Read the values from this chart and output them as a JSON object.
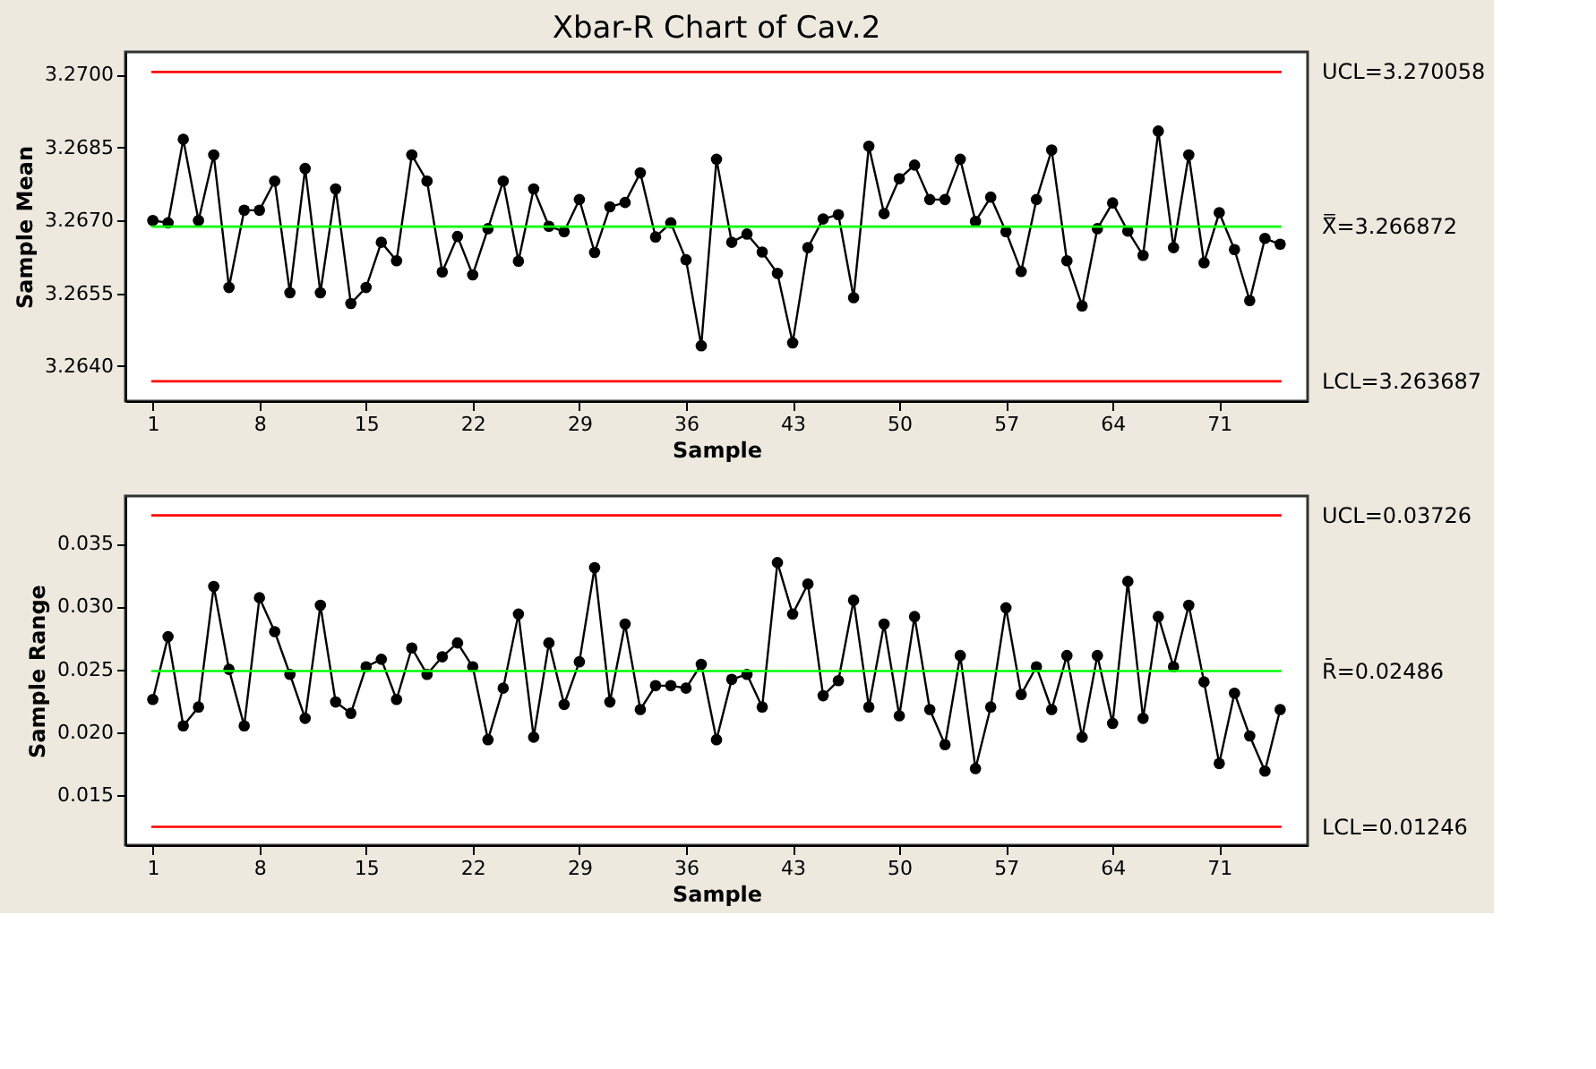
{
  "chart_data": [
    {
      "type": "line",
      "title": "Xbar-R Chart of Cav.2",
      "xlabel": "Sample",
      "ylabel": "Sample Mean",
      "x": [
        1,
        2,
        3,
        4,
        5,
        6,
        7,
        8,
        9,
        10,
        11,
        12,
        13,
        14,
        15,
        16,
        17,
        18,
        19,
        20,
        21,
        22,
        23,
        24,
        25,
        26,
        27,
        28,
        29,
        30,
        31,
        32,
        33,
        34,
        35,
        36,
        37,
        38,
        39,
        40,
        41,
        42,
        43,
        44,
        45,
        46,
        47,
        48,
        49,
        50,
        51,
        52,
        53,
        54,
        55,
        56,
        57,
        58,
        59,
        60,
        61,
        62,
        63,
        64,
        65,
        66,
        67,
        68,
        69,
        70,
        71,
        72,
        73,
        74,
        75
      ],
      "series": [
        {
          "color": "#000000",
          "values": [
            3.267,
            3.26695,
            3.26867,
            3.267,
            3.26835,
            3.26562,
            3.26721,
            3.26721,
            3.26781,
            3.26551,
            3.26807,
            3.26551,
            3.26765,
            3.26529,
            3.26562,
            3.26655,
            3.26617,
            3.26835,
            3.26781,
            3.26594,
            3.26667,
            3.26588,
            3.26683,
            3.26781,
            3.26616,
            3.26765,
            3.26688,
            3.26677,
            3.26743,
            3.26634,
            3.26728,
            3.26737,
            3.26798,
            3.26666,
            3.26695,
            3.26619,
            3.26442,
            3.26826,
            3.26655,
            3.26672,
            3.26635,
            3.26591,
            3.26448,
            3.26644,
            3.26703,
            3.26712,
            3.26541,
            3.26853,
            3.26714,
            3.26786,
            3.26814,
            3.26743,
            3.26743,
            3.26826,
            3.26698,
            3.26748,
            3.26677,
            3.26595,
            3.26743,
            3.26845,
            3.26617,
            3.26524,
            3.26683,
            3.26736,
            3.26678,
            3.26628,
            3.26884,
            3.26644,
            3.26835,
            3.26613,
            3.26716,
            3.2664,
            3.26535,
            3.26663,
            3.26651
          ]
        }
      ],
      "xlim": [
        -0.8,
        76.8
      ],
      "xticks": [
        1,
        8,
        15,
        22,
        29,
        36,
        43,
        50,
        57,
        64,
        71
      ],
      "ylim": [
        3.26328,
        3.27047
      ],
      "yticks": [
        {
          "value": 3.27,
          "label": "3.2700"
        },
        3.2685,
        {
          "value": 3.267,
          "label": "3.2670"
        },
        3.2655,
        {
          "value": 3.264,
          "label": "3.2640"
        }
      ],
      "ref_lines": [
        {
          "axis": "y",
          "value": 3.270058,
          "label": "UCL=3.270058",
          "color": "#ff0000"
        },
        {
          "axis": "y",
          "value": 3.266872,
          "label": "X̿=3.266872",
          "color": "#00ff00"
        },
        {
          "axis": "y",
          "value": 3.263687,
          "label": "LCL=3.263687",
          "color": "#ff0000"
        }
      ],
      "marker": "circle",
      "line_style": "solid",
      "grid": false
    },
    {
      "type": "line",
      "xlabel": "Sample",
      "ylabel": "Sample Range",
      "x": [
        1,
        2,
        3,
        4,
        5,
        6,
        7,
        8,
        9,
        10,
        11,
        12,
        13,
        14,
        15,
        16,
        17,
        18,
        19,
        20,
        21,
        22,
        23,
        24,
        25,
        26,
        27,
        28,
        29,
        30,
        31,
        32,
        33,
        34,
        35,
        36,
        37,
        38,
        39,
        40,
        41,
        42,
        43,
        44,
        45,
        46,
        47,
        48,
        49,
        50,
        51,
        52,
        53,
        54,
        55,
        56,
        57,
        58,
        59,
        60,
        61,
        62,
        63,
        64,
        65,
        66,
        67,
        68,
        69,
        70,
        71,
        72,
        73,
        74,
        75
      ],
      "series": [
        {
          "color": "#000000",
          "values": [
            0.0226,
            0.0276,
            0.0205,
            0.022,
            0.0316,
            0.025,
            0.0205,
            0.0307,
            0.028,
            0.0246,
            0.0211,
            0.0301,
            0.0224,
            0.0215,
            0.0252,
            0.0258,
            0.0226,
            0.0267,
            0.0246,
            0.026,
            0.0271,
            0.0252,
            0.0194,
            0.0235,
            0.0294,
            0.0196,
            0.0271,
            0.0222,
            0.0256,
            0.0331,
            0.0224,
            0.0286,
            0.0218,
            0.0237,
            0.0237,
            0.0235,
            0.0254,
            0.0194,
            0.0242,
            0.0246,
            0.022,
            0.0335,
            0.0294,
            0.0318,
            0.0229,
            0.0241,
            0.0305,
            0.022,
            0.0286,
            0.0213,
            0.0292,
            0.0218,
            0.019,
            0.0261,
            0.0171,
            0.022,
            0.0299,
            0.023,
            0.0252,
            0.0218,
            0.0261,
            0.0196,
            0.0261,
            0.0207,
            0.032,
            0.0211,
            0.0292,
            0.0252,
            0.0301,
            0.024,
            0.0175,
            0.0231,
            0.0197,
            0.0169,
            0.0218
          ]
        }
      ],
      "xlim": [
        -0.8,
        76.8
      ],
      "xticks": [
        1,
        8,
        15,
        22,
        29,
        36,
        43,
        50,
        57,
        64,
        71
      ],
      "ylim": [
        0.011,
        0.0388
      ],
      "yticks": [
        0.035,
        {
          "value": 0.03,
          "label": "0.030"
        },
        0.025,
        {
          "value": 0.02,
          "label": "0.020"
        },
        0.015
      ],
      "ref_lines": [
        {
          "axis": "y",
          "value": 0.03726,
          "label": "UCL=0.03726",
          "color": "#ff0000"
        },
        {
          "axis": "y",
          "value": 0.02486,
          "label": "R̄=0.02486",
          "color": "#00ff00"
        },
        {
          "axis": "y",
          "value": 0.01246,
          "label": "LCL=0.01246",
          "color": "#ff0000"
        }
      ],
      "marker": "circle",
      "line_style": "solid",
      "grid": false
    }
  ]
}
